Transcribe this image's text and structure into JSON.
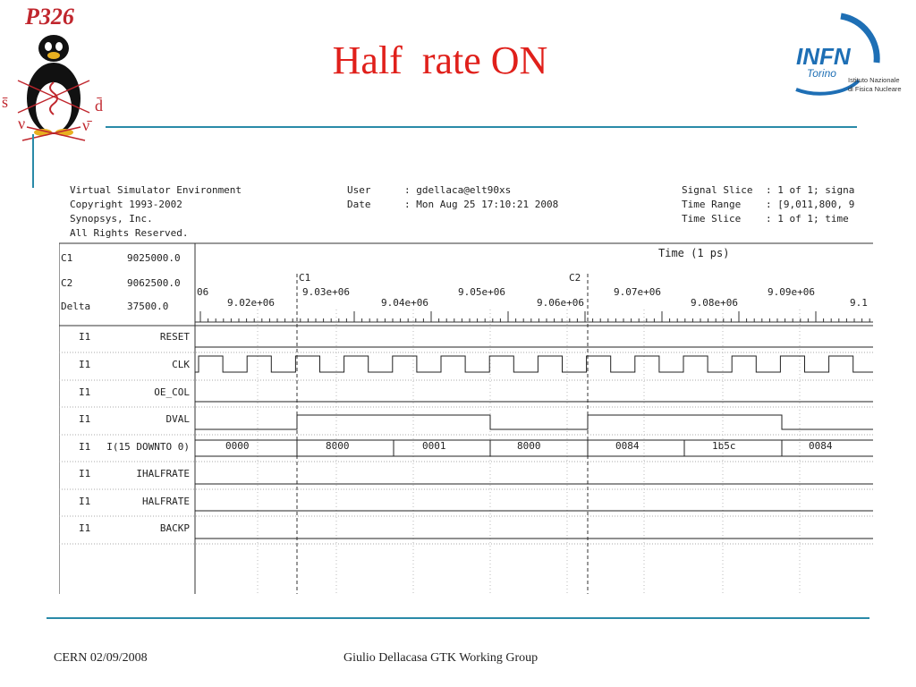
{
  "slide": {
    "title": "Half  rate ON",
    "footer_left": "CERN 02/09/2008",
    "footer_center": "Giulio Dellacasa GTK Working Group"
  },
  "logos": {
    "p326_text": "P326",
    "p326_symbols": [
      "s̄",
      "d̄",
      "ν",
      "ν̄"
    ],
    "infn_text": "INFN",
    "infn_sub": "Torino",
    "infn_institute_line1": "Istituto Nazionale",
    "infn_institute_line2": "di Fisica Nucleare"
  },
  "simulator": {
    "header_left": [
      "Virtual Simulator Environment",
      "Copyright 1993-2002",
      "Synopsys, Inc.",
      "All Rights Reserved."
    ],
    "user_label": "User",
    "user_value": ": gdellaca@elt90xs",
    "date_label": "Date",
    "date_value": ": Mon Aug 25 17:10:21 2008",
    "signal_slice_label": "Signal Slice",
    "signal_slice_value": ": 1 of 1; signa",
    "time_range_label": "Time Range",
    "time_range_value": ": [9,011,800, 9",
    "time_slice_label": "Time Slice",
    "time_slice_value": ": 1 of 1; time",
    "c1_label": "C1",
    "c1_value": "9025000.0",
    "c2_label": "C2",
    "c2_value": "9062500.0",
    "delta_label": "Delta",
    "delta_value": "37500.0",
    "time_axis_title": "Time (1 ps)",
    "marker_c1": "C1",
    "marker_c2": "C2",
    "tick_labels_upper": [
      "06",
      "9.03e+06",
      "9.05e+06",
      "9.07e+06",
      "9.09e+06"
    ],
    "tick_labels_lower": [
      "9.02e+06",
      "9.04e+06",
      "9.06e+06",
      "9.08e+06",
      "9.1"
    ],
    "signals": [
      {
        "id": "I1",
        "name": "RESET"
      },
      {
        "id": "I1",
        "name": "CLK"
      },
      {
        "id": "I1",
        "name": "OE_COL"
      },
      {
        "id": "I1",
        "name": "DVAL"
      },
      {
        "id": "I1",
        "name": "I(15 DOWNTO 0)"
      },
      {
        "id": "I1",
        "name": "IHALFRATE"
      },
      {
        "id": "I1",
        "name": "HALFRATE"
      },
      {
        "id": "I1",
        "name": "BACKP"
      }
    ],
    "bus_values": [
      "0000",
      "8000",
      "0001",
      "8000",
      "0084",
      "1b5c",
      "0084"
    ]
  }
}
